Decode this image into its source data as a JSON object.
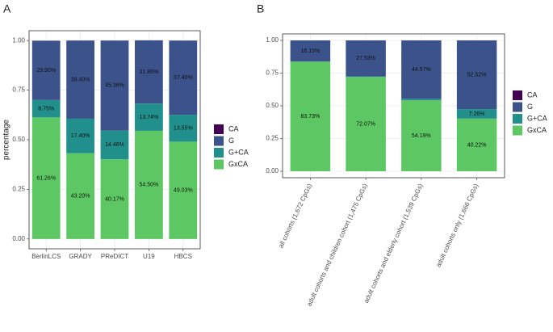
{
  "chart_data": [
    {
      "type": "bar",
      "stacked": true,
      "title": "A",
      "ylabel": "percentage",
      "categories": [
        "BerlinLCS",
        "GRADY",
        "PReDICT",
        "U19",
        "HBCS"
      ],
      "series": [
        {
          "name": "CA",
          "color": "#440154",
          "values": [
            0,
            0,
            0,
            0,
            0
          ],
          "value_labels": [
            null,
            null,
            null,
            null,
            null
          ]
        },
        {
          "name": "G",
          "color": "#3b528b",
          "values": [
            0.299,
            0.394,
            0.4536,
            0.3186,
            0.374
          ],
          "value_labels": [
            "29.90%",
            "39.40%",
            "45.36%",
            "31.86%",
            "37.40%"
          ]
        },
        {
          "name": "G+CA",
          "color": "#21908c",
          "values": [
            0.0875,
            0.174,
            0.1446,
            0.1374,
            0.1355
          ],
          "value_labels": [
            "8.75%",
            "17.40%",
            "14.46%",
            "13.74%",
            "13.55%"
          ]
        },
        {
          "name": "GxCA",
          "color": "#5dc863",
          "values": [
            0.6126,
            0.432,
            0.4017,
            0.545,
            0.4903
          ],
          "value_labels": [
            "61.26%",
            "43.20%",
            "40.17%",
            "54.50%",
            "49.03%"
          ]
        }
      ],
      "ylim": [
        0,
        1
      ],
      "yticks": [
        {
          "value": 0,
          "label": "0.00"
        },
        {
          "value": 0.25,
          "label": "0.25"
        },
        {
          "value": 0.5,
          "label": "0.50"
        },
        {
          "value": 0.75,
          "label": "0.75"
        },
        {
          "value": 1,
          "label": "1.00"
        }
      ],
      "grid": true,
      "legend": "right"
    },
    {
      "type": "bar",
      "stacked": true,
      "title": "B",
      "categories": [
        "all cohorts (1,672 CpGs)",
        "adult cohorts and children cohort (1,475 CpGs)",
        "adult cohorts and elderly cohort (1,539 CpGs)",
        "adult cohorts only (1,666 CpGs)"
      ],
      "series": [
        {
          "name": "CA",
          "color": "#440154",
          "values": [
            0,
            0,
            0,
            0
          ],
          "value_labels": [
            null,
            null,
            null,
            null
          ]
        },
        {
          "name": "G",
          "color": "#3b528b",
          "values": [
            0.1615,
            0.2753,
            0.4457,
            0.5252
          ],
          "value_labels": [
            "16.15%",
            "27.53%",
            "44.57%",
            "52.52%"
          ]
        },
        {
          "name": "G+CA",
          "color": "#21908c",
          "values": [
            0.0012,
            0.004,
            0.0124,
            0.0726
          ],
          "value_labels": [
            null,
            null,
            null,
            "7.26%"
          ]
        },
        {
          "name": "GxCA",
          "color": "#5dc863",
          "values": [
            0.8373,
            0.7207,
            0.5419,
            0.4022
          ],
          "value_labels": [
            "83.73%",
            "72.07%",
            "54.19%",
            "40.22%"
          ]
        }
      ],
      "ylim": [
        0,
        1
      ],
      "yticks": [
        {
          "value": 0,
          "label": "0.00"
        },
        {
          "value": 0.25,
          "label": "0.25"
        },
        {
          "value": 0.5,
          "label": "0.50"
        },
        {
          "value": 0.75,
          "label": "0.75"
        },
        {
          "value": 1,
          "label": "1.00"
        }
      ],
      "grid": true,
      "legend": "right"
    }
  ]
}
